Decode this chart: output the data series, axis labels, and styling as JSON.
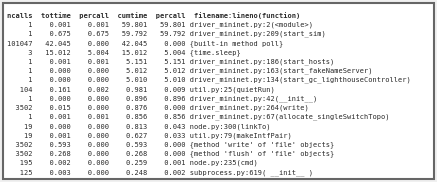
{
  "header": "ncalls  tottime  percall  cumtime  percall  filename:lineno(function)",
  "rows": [
    "     1    0.001    0.001   59.801   59.801 driver_mininet.py:2(<module>)",
    "     1    0.675    0.675   59.792   59.792 driver_mininet.py:209(start_sim)",
    "101047   42.045    0.000   42.045    0.000 {built-in method poll}",
    "     3   15.012    5.004   15.012    5.004 {time.sleep}",
    "     1    0.001    0.001    5.151    5.151 driver_mininet.py:186(start_hosts)",
    "     1    0.000    0.000    5.012    5.012 driver_mininet.py:163(start_fakeNameServer)",
    "     1    0.000    0.000    5.010    5.010 driver_mininet.py:134(start_gc_lighthouseController)",
    "   104    0.161    0.002    0.981    0.009 util.py:25(quietRun)",
    "     1    0.000    0.000    0.896    0.896 driver_mininet.py:42(__init__)",
    "  3502    0.015    0.000    0.876    0.000 driver_mininet.py:264(write)",
    "     1    0.001    0.001    0.856    0.856 driver_mininet.py:67(allocate_singleSwitchTopo)",
    "    19    0.000    0.000    0.813    0.043 node.py:300(linkTo)",
    "    19    0.001    0.000    0.627    0.033 util.py:79(makeIntfPair)",
    "  3502    0.593    0.000    0.593    0.000 {method 'write' of 'file' objects}",
    "  3502    0.268    0.000    0.268    0.000 {method 'flush' of 'file' objects}",
    "   195    0.002    0.000    0.259    0.001 node.py:235(cmd)",
    "   125    0.003    0.000    0.248    0.002 subprocess.py:619( __init__ )"
  ],
  "bg_color": "#f0f0f0",
  "inner_bg_color": "#ffffff",
  "text_color": "#2a2a2a",
  "border_color": "#888888",
  "font_size": 5.0,
  "outer_border_color": "#aaaaaa"
}
